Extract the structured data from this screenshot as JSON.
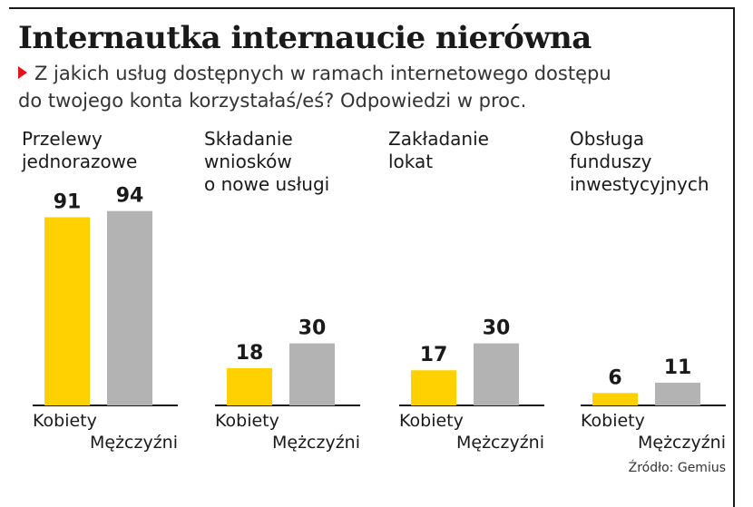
{
  "chart_data": {
    "type": "bar",
    "title": "Internautka internaucie nierówna",
    "subtitle_lines": [
      "Z jakich usług dostępnych w ramach internetowego dostępu",
      "do twojego konta korzystałaś/eś? Odpowiedzi w proc."
    ],
    "categories": [
      [
        "Przelewy",
        "jednorazowe"
      ],
      [
        "Składanie",
        "wniosków",
        "o nowe usługi"
      ],
      [
        "Zakładanie",
        "lokat"
      ],
      [
        "Obsługa",
        "funduszy",
        "inwestycyjnych"
      ]
    ],
    "series": [
      {
        "name": "Kobiety",
        "values": [
          91,
          18,
          17,
          6
        ],
        "color": "#ffd100"
      },
      {
        "name": "Mężczyźni",
        "values": [
          94,
          30,
          30,
          11
        ],
        "color": "#b3b3b3"
      }
    ],
    "ylim": [
      0,
      100
    ],
    "grid": false,
    "legend": "below each group",
    "source": "Źródło: Gemius"
  },
  "colors": {
    "accent": "#e3141b",
    "axis": "#1a1a1a"
  }
}
